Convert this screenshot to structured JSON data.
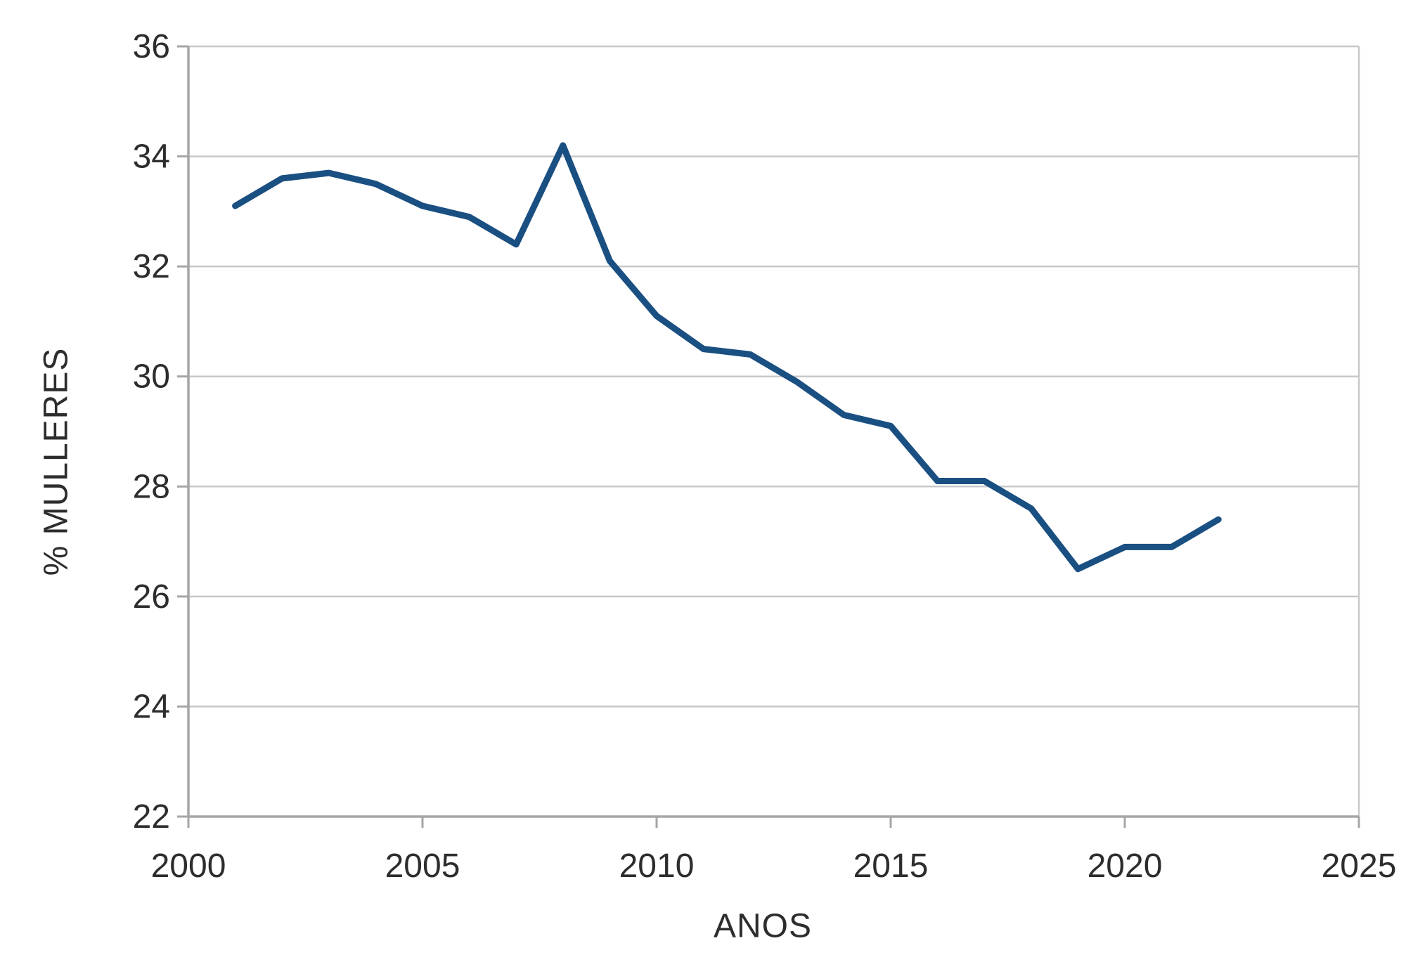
{
  "chart_data": {
    "type": "line",
    "title": "",
    "xlabel": "ANOS",
    "ylabel": "% MULLERES",
    "x": [
      2001,
      2002,
      2003,
      2004,
      2005,
      2006,
      2007,
      2008,
      2009,
      2010,
      2011,
      2012,
      2013,
      2014,
      2015,
      2016,
      2017,
      2018,
      2019,
      2020,
      2021,
      2022
    ],
    "values": [
      33.1,
      33.6,
      33.7,
      33.5,
      33.1,
      32.9,
      32.4,
      34.2,
      32.1,
      31.1,
      30.5,
      30.4,
      29.9,
      29.3,
      29.1,
      28.1,
      28.1,
      27.6,
      26.5,
      26.9,
      26.9,
      27.4
    ],
    "series_name": "% mulleres",
    "xlim": [
      2000,
      2025
    ],
    "ylim": [
      22,
      36
    ],
    "x_ticks": [
      2000,
      2005,
      2010,
      2015,
      2020,
      2025
    ],
    "y_ticks": [
      22,
      24,
      26,
      28,
      30,
      32,
      34,
      36
    ],
    "grid": "horizontal",
    "legend": "none",
    "colors": {
      "line": "#1a4f82",
      "grid": "#c8c8c8",
      "axis": "#a6a6a6",
      "text": "#2d2d2d",
      "background": "#ffffff"
    }
  }
}
